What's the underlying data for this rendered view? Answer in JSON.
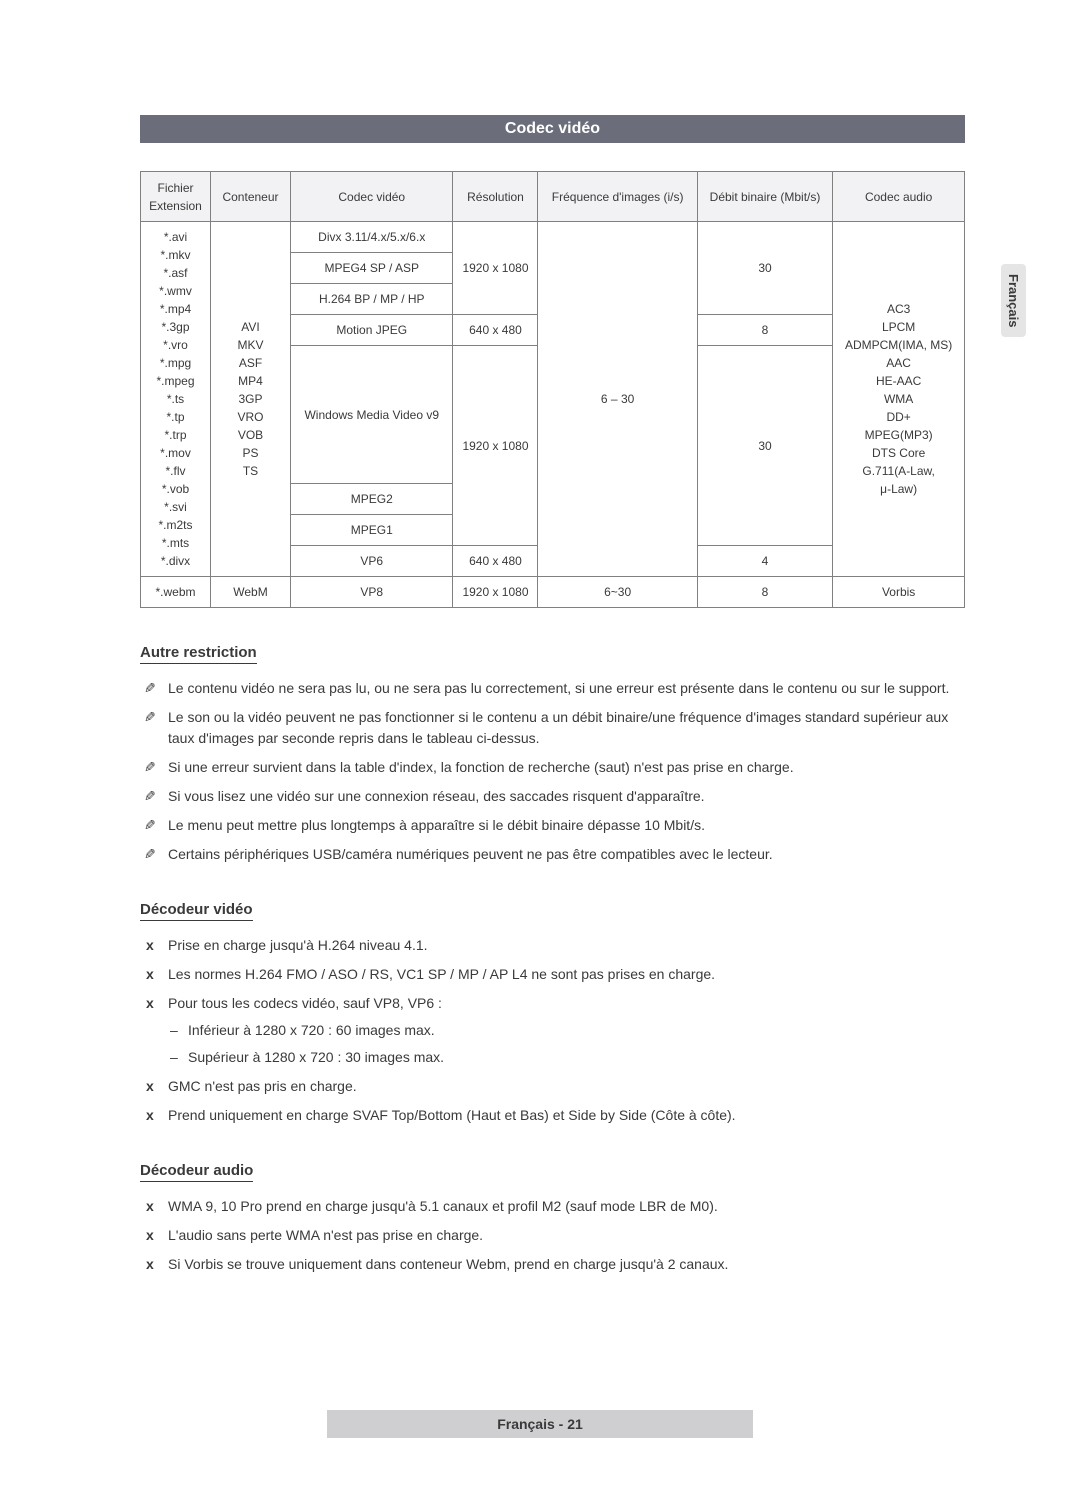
{
  "banner": "Codec vidéo",
  "side_tab": "Français",
  "table": {
    "headers": [
      "Fichier Extension",
      "Conteneur",
      "Codec vidéo",
      "Résolution",
      "Fréquence d'images (i/s)",
      "Débit binaire (Mbit/s)",
      "Codec audio"
    ],
    "ext_list": "*.avi\n*.mkv\n*.asf\n*.wmv\n*.mp4\n*.3gp\n*.vro\n*.mpg\n*.mpeg\n*.ts\n*.tp\n*.trp\n*.mov\n*.flv\n*.vob\n*.svi\n*.m2ts\n*.mts\n*.divx",
    "cont_list": "AVI\nMKV\nASF\nMP4\n3GP\nVRO\nVOB\nPS\nTS",
    "audio_list": "AC3\nLPCM\nADMPCM(IMA, MS)\nAAC\nHE-AAC\nWMA\nDD+\nMPEG(MP3)\nDTS Core\nG.711(A-Law,\nμ-Law)",
    "fps_top": "6 – 30",
    "rows": [
      {
        "codec": "Divx 3.11/4.x/5.x/6.x",
        "res": "1920 x 1080",
        "rate": "30"
      },
      {
        "codec": "MPEG4 SP / ASP"
      },
      {
        "codec": "H.264 BP / MP / HP"
      },
      {
        "codec": "Motion JPEG",
        "res": "640 x 480",
        "rate": "8"
      },
      {
        "codec": "Windows Media Video v9",
        "res": "1920 x 1080",
        "rate": "30"
      },
      {
        "codec": "MPEG2"
      },
      {
        "codec": "MPEG1"
      },
      {
        "codec": "VP6",
        "res": "640 x 480",
        "rate": "4"
      }
    ],
    "webm": {
      "ext": "*.webm",
      "cont": "WebM",
      "codec": "VP8",
      "res": "1920 x 1080",
      "fps": "6~30",
      "rate": "8",
      "audio": "Vorbis"
    }
  },
  "sections": {
    "restrict": {
      "title": "Autre restriction",
      "items": [
        "Le contenu vidéo ne sera pas lu, ou ne sera pas lu correctement, si une erreur est présente dans le contenu ou sur le support.",
        "Le son ou la vidéo peuvent ne pas fonctionner si le contenu a un débit binaire/une fréquence d'images standard supérieur aux taux d'images par seconde repris dans le tableau ci-dessus.",
        "Si une erreur survient dans la table d'index, la fonction de recherche (saut) n'est pas prise en charge.",
        "Si vous lisez une vidéo sur une connexion réseau, des saccades risquent d'apparaître.",
        "Le menu peut mettre plus longtemps à apparaître si le débit binaire dépasse 10 Mbit/s.",
        "Certains périphériques USB/caméra numériques peuvent ne pas être compatibles avec le lecteur."
      ]
    },
    "vdec": {
      "title": "Décodeur vidéo",
      "items": [
        "Prise en charge jusqu'à H.264 niveau 4.1.",
        "Les normes H.264 FMO / ASO / RS, VC1 SP / MP / AP L4 ne sont pas prises en charge.",
        "Pour tous les codecs vidéo, sauf VP8, VP6 :",
        "GMC n'est pas pris en charge.",
        "Prend uniquement en charge SVAF Top/Bottom (Haut et Bas) et Side by Side (Côte à côte)."
      ],
      "sub": [
        "Inférieur à 1280 x 720 : 60 images max.",
        "Supérieur à 1280 x 720 : 30 images max."
      ]
    },
    "adec": {
      "title": "Décodeur audio",
      "items": [
        "WMA 9, 10 Pro prend en charge jusqu'à 5.1 canaux et profil M2 (sauf mode LBR de M0).",
        "L'audio sans perte WMA n'est pas prise en charge.",
        "Si Vorbis se trouve uniquement dans conteneur Webm, prend en charge jusqu'à 2 canaux."
      ]
    }
  },
  "footer": "Français - 21"
}
